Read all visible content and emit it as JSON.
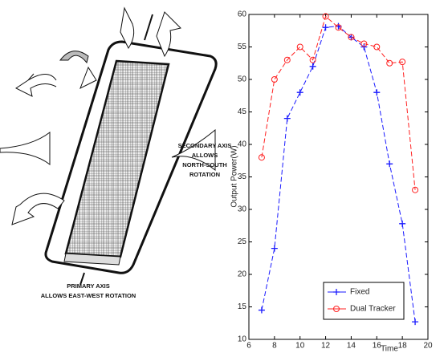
{
  "diagram": {
    "secondary_axis": [
      "SECONDARY AXIS",
      "ALLOWS",
      "NORTH-SOUTH",
      "ROTATION"
    ],
    "primary_axis": [
      "PRIMARY AXIS",
      "ALLOWS EAST-WEST ROTATION"
    ]
  },
  "chart_data": {
    "type": "line",
    "x_label": "Time",
    "y_label": "Output Power(W)",
    "x": [
      7,
      8,
      9,
      10,
      11,
      12,
      13,
      14,
      15,
      16,
      17,
      18,
      19
    ],
    "series": [
      {
        "name": "Fixed",
        "color": "#1a1aff",
        "marker": "+",
        "values": [
          14.5,
          24,
          44,
          48,
          52,
          58,
          58.2,
          56.5,
          55,
          48,
          37,
          27.8,
          12.7
        ]
      },
      {
        "name": "Dual Tracker",
        "color": "#ff2020",
        "marker": "o",
        "values": [
          38,
          50,
          53,
          55,
          53,
          59.7,
          58,
          56.5,
          55.5,
          55,
          52.5,
          52.7,
          33
        ]
      }
    ],
    "xlim": [
      6,
      20
    ],
    "xticks": [
      6,
      8,
      10,
      12,
      14,
      16,
      18,
      20
    ],
    "ylim": [
      10,
      60
    ],
    "yticks": [
      10,
      15,
      20,
      25,
      30,
      35,
      40,
      45,
      50,
      55,
      60
    ],
    "legend": "lower right"
  }
}
